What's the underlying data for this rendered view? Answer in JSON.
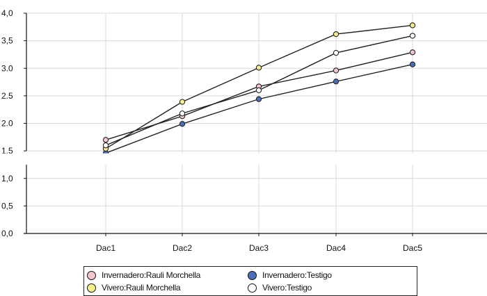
{
  "chart_data": {
    "type": "line",
    "categories": [
      "Dac1",
      "Dac2",
      "Dac3",
      "Dac4",
      "Dac5"
    ],
    "ylim": [
      0.0,
      4.0
    ],
    "y_tick_labels": [
      "0,0",
      "0,5",
      "1,0",
      "1.5",
      "2.0",
      "2.5",
      "3.0",
      "3,5",
      "4,0"
    ],
    "grid": true,
    "legend_position": "bottom",
    "series": [
      {
        "name": "Invernadero:Rauli Morchella",
        "values": [
          1.7,
          2.13,
          2.67,
          2.96,
          3.29
        ],
        "marker_color": "#f2c6cc"
      },
      {
        "name": "Invernadero:Testigo",
        "values": [
          1.46,
          1.99,
          2.44,
          2.76,
          3.07
        ],
        "marker_color": "#4a6fb8"
      },
      {
        "name": "Vivero:Rauli Morchella",
        "values": [
          1.54,
          2.39,
          3.01,
          3.62,
          3.78
        ],
        "marker_color": "#f7f08a"
      },
      {
        "name": "Vivero:Testigo",
        "values": [
          1.6,
          2.18,
          2.6,
          3.28,
          3.59
        ],
        "marker_color": "#ffffff"
      }
    ]
  },
  "colors": {
    "line": "#222222",
    "grid": "#d8d8d8",
    "axis": "#111111"
  },
  "legend": {
    "items": [
      {
        "label": "Invernadero:Rauli Morchella",
        "swatch": "#f2c6cc"
      },
      {
        "label": "Invernadero:Testigo",
        "swatch": "#4a6fb8"
      },
      {
        "label": "Vivero:Rauli Morchella",
        "swatch": "#f7f08a"
      },
      {
        "label": "Vivero:Testigo",
        "swatch": "#ffffff"
      }
    ]
  }
}
